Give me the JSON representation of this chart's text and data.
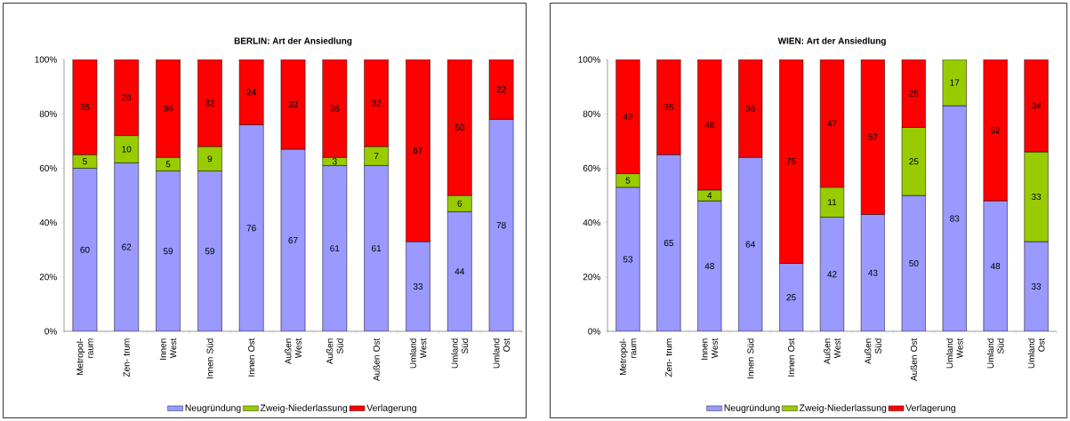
{
  "chart_data": [
    {
      "type": "bar",
      "title": "BERLIN: Art der Ansiedlung",
      "categories": [
        "Metropol- raum",
        "Zen- trum",
        "Innen West",
        "Innen Süd",
        "Innen Ost",
        "Außen West",
        "Außen Süd",
        "Außen Ost",
        "Umland West",
        "Umland Süd",
        "Umland Ost"
      ],
      "stacked": true,
      "data_labels": true,
      "legend": "bottom",
      "ylim": [
        0,
        100
      ],
      "yticks": [
        {
          "value": 0,
          "label": "0%"
        },
        {
          "value": 20,
          "label": "20%"
        },
        {
          "value": 40,
          "label": "40%"
        },
        {
          "value": 60,
          "label": "60%"
        },
        {
          "value": 80,
          "label": "80%"
        },
        {
          "value": 100,
          "label": "100%"
        }
      ],
      "series": [
        {
          "name": "Neugründung",
          "color": "#9999ff",
          "values": [
            60,
            62,
            59,
            59,
            76,
            67,
            61,
            61,
            33,
            44,
            78
          ]
        },
        {
          "name": "Zweig-Niederlassung",
          "color": "#99cc00",
          "values": [
            5,
            10,
            5,
            9,
            null,
            null,
            3,
            7,
            null,
            6,
            null
          ]
        },
        {
          "name": "Verlagerung",
          "color": "#ff0000",
          "values": [
            35,
            28,
            36,
            32,
            24,
            33,
            36,
            32,
            67,
            50,
            22
          ]
        }
      ]
    },
    {
      "type": "bar",
      "title": "WIEN: Art der Ansiedlung",
      "categories": [
        "Metropol- raum",
        "Zen- trum",
        "Innen West",
        "Innen Süd",
        "Innen Ost",
        "Außen West",
        "Außen Süd",
        "Außen Ost",
        "Umland West",
        "Umland Süd",
        "Umland Ost"
      ],
      "stacked": true,
      "data_labels": true,
      "legend": "bottom",
      "ylim": [
        0,
        100
      ],
      "yticks": [
        {
          "value": 0,
          "label": "0%"
        },
        {
          "value": 20,
          "label": "20%"
        },
        {
          "value": 40,
          "label": "40%"
        },
        {
          "value": 60,
          "label": "60%"
        },
        {
          "value": 80,
          "label": "80%"
        },
        {
          "value": 100,
          "label": "100%"
        }
      ],
      "series": [
        {
          "name": "Neugründung",
          "color": "#9999ff",
          "values": [
            53,
            65,
            48,
            64,
            25,
            42,
            43,
            50,
            83,
            48,
            33
          ]
        },
        {
          "name": "Zweig-Niederlassung",
          "color": "#99cc00",
          "values": [
            5,
            null,
            4,
            null,
            null,
            11,
            null,
            25,
            17,
            null,
            33
          ]
        },
        {
          "name": "Verlagerung",
          "color": "#ff0000",
          "values": [
            42,
            35,
            48,
            36,
            75,
            47,
            57,
            25,
            null,
            52,
            34
          ]
        }
      ]
    }
  ]
}
